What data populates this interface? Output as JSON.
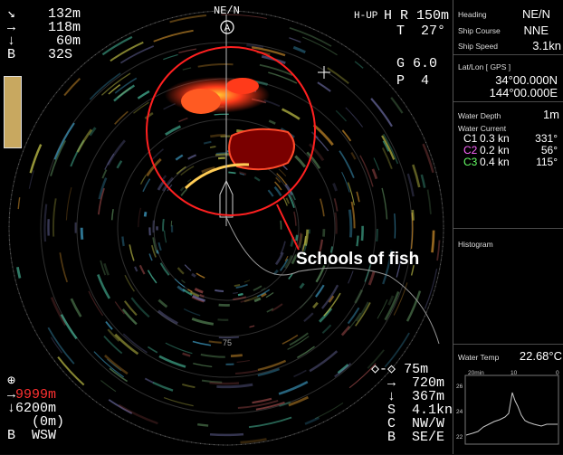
{
  "top_left": {
    "rows": [
      {
        "icon": "↘",
        "value": "132m"
      },
      {
        "icon": "→",
        "value": "118m"
      },
      {
        "icon": "↓",
        "value": "60m"
      },
      {
        "icon": "B",
        "value": "32S"
      }
    ]
  },
  "top_center": {
    "bearing": "NE/N",
    "circle_label": "A"
  },
  "top_right": {
    "mode": "H-UP",
    "range_label": "H R 150m",
    "tilt": "T  27°",
    "gain": "G 6.0",
    "pulse": "P  4"
  },
  "bottom_left": {
    "rows": [
      {
        "icon": "⊕",
        "value": ""
      },
      {
        "icon": "→",
        "value": "9999m",
        "color": "#ff3030"
      },
      {
        "icon": "↓",
        "value": "6200m"
      },
      {
        "icon": "",
        "value": "(0m)"
      },
      {
        "icon": "B",
        "value": "WSW"
      }
    ]
  },
  "bottom_right": {
    "rows": [
      {
        "icon": "◇-◇",
        "value": "75m"
      },
      {
        "icon": "→",
        "value": "720m"
      },
      {
        "icon": "↓",
        "value": "367m"
      },
      {
        "icon": "S",
        "value": "4.1kn"
      },
      {
        "icon": "C",
        "value": "NW/W"
      },
      {
        "icon": "B",
        "value": "SE/E"
      }
    ]
  },
  "ring_marks": {
    "center": "75"
  },
  "annotation": "Schools of fish",
  "panel": {
    "heading_label": "Heading",
    "heading_value": "NE/N",
    "course_label": "Ship Course",
    "course_value": "NNE",
    "speed_label": "Ship Speed",
    "speed_value": "3.1kn",
    "latlon_label": "Lat/Lon [ GPS ]",
    "lat": "34°00.000N",
    "lon": "144°00.000E",
    "depth_label": "Water Depth",
    "depth_value": "1m",
    "current_label": "Water Current",
    "currents": [
      {
        "name": "C1",
        "speed": "0.3 kn",
        "dir": "331°",
        "color": "#ffffff"
      },
      {
        "name": "C2",
        "speed": "0.2 kn",
        "dir": "56°",
        "color": "#ff66ff"
      },
      {
        "name": "C3",
        "speed": "0.4 kn",
        "dir": "115°",
        "color": "#66ff66"
      }
    ],
    "histogram_label": "Histogram",
    "temp_label": "Water Temp",
    "temp_value": "22.68°C",
    "chart": {
      "x_ticks": [
        "20min",
        "10",
        "0"
      ],
      "y_ticks": [
        "26",
        "24",
        "22"
      ]
    }
  },
  "colors": {
    "echo_red": "#ff2a1a",
    "echo_dark": "#7a0000",
    "ring": "#3a3a3a",
    "circle": "#ff2020"
  }
}
